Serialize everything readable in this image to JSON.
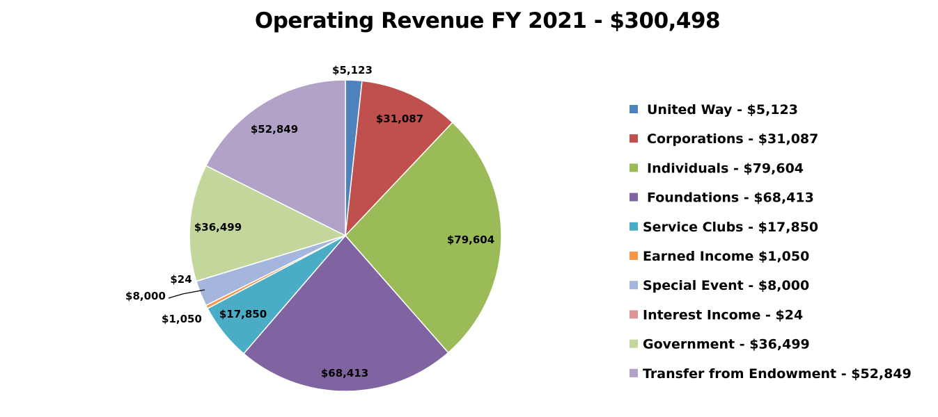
{
  "chart_data": {
    "type": "pie",
    "title": "Operating Revenue FY 2021 - $300,498",
    "total": 300498,
    "legend_position": "right",
    "slices": [
      {
        "name": "United Way",
        "legend_label": "United Way - $5,123",
        "value": 5123,
        "label": "$5,123",
        "color": "#4F81BD"
      },
      {
        "name": "Corporations",
        "legend_label": "Corporations -  $31,087",
        "value": 31087,
        "label": "$31,087",
        "color": "#C0504D"
      },
      {
        "name": "Individuals",
        "legend_label": "Individuals - $79,604",
        "value": 79604,
        "label": "$79,604",
        "color": "#9BBB59"
      },
      {
        "name": "Foundations",
        "legend_label": "Foundations - $68,413",
        "value": 68413,
        "label": "$68,413",
        "color": "#8064A2"
      },
      {
        "name": "Service Clubs",
        "legend_label": "Service Clubs - $17,850",
        "value": 17850,
        "label": "$17,850",
        "color": "#4BACC6"
      },
      {
        "name": "Earned Income",
        "legend_label": "Earned Income $1,050",
        "value": 1050,
        "label": "$1,050",
        "color": "#F79646"
      },
      {
        "name": "Special Event",
        "legend_label": "Special Event - $8,000",
        "value": 8000,
        "label": "$8,000",
        "color": "#A5B6DC"
      },
      {
        "name": "Interest Income",
        "legend_label": "Interest Income - $24",
        "value": 24,
        "label": "$24",
        "color": "#D99694"
      },
      {
        "name": "Government",
        "legend_label": "Government - $36,499",
        "value": 36499,
        "label": "$36,499",
        "color": "#C3D69B"
      },
      {
        "name": "Transfer from Endowment",
        "legend_label": "Transfer from Endowment - $52,849",
        "value": 52849,
        "label": "$52,849",
        "color": "#B2A2C7"
      }
    ]
  }
}
